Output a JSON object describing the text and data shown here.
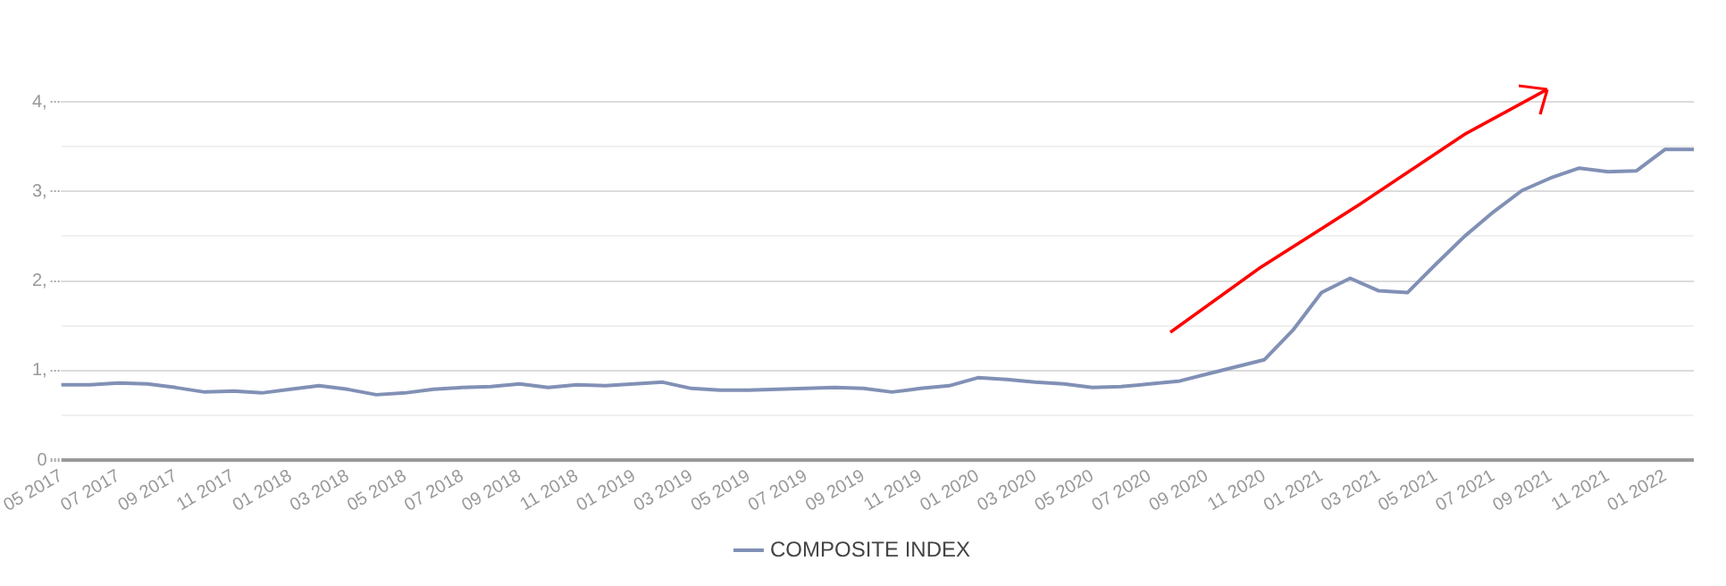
{
  "chart_data": {
    "type": "line",
    "categories": [
      "05 2017",
      null,
      "07 2017",
      null,
      "09 2017",
      null,
      "11 2017",
      null,
      "01 2018",
      null,
      "03 2018",
      null,
      "05 2018",
      null,
      "07 2018",
      null,
      "09 2018",
      null,
      "11 2018",
      null,
      "01 2019",
      null,
      "03 2019",
      null,
      "05 2019",
      null,
      "07 2019",
      null,
      "09 2019",
      null,
      "11 2019",
      null,
      "01 2020",
      null,
      "03 2020",
      null,
      "05 2020",
      null,
      "07 2020",
      null,
      "09 2020",
      null,
      "11 2020",
      null,
      "01 2021",
      null,
      "03 2021",
      null,
      "05 2021",
      null,
      "07 2021",
      null,
      "09 2021",
      null,
      "11 2021",
      null,
      "01 2022",
      null
    ],
    "series": [
      {
        "name": "COMPOSITE INDEX",
        "color": "#8190b5",
        "values": [
          0.84,
          0.84,
          0.86,
          0.85,
          0.81,
          0.76,
          0.77,
          0.75,
          0.79,
          0.83,
          0.79,
          0.73,
          0.75,
          0.79,
          0.81,
          0.82,
          0.85,
          0.81,
          0.84,
          0.83,
          0.85,
          0.87,
          0.8,
          0.78,
          0.78,
          0.79,
          0.8,
          0.81,
          0.8,
          0.76,
          0.8,
          0.83,
          0.92,
          0.9,
          0.87,
          0.85,
          0.81,
          0.82,
          0.85,
          0.88,
          0.96,
          1.04,
          1.12,
          1.45,
          1.87,
          2.03,
          1.89,
          1.87,
          2.19,
          2.5,
          2.77,
          3.01,
          3.15,
          3.26,
          3.22,
          3.23,
          3.47,
          3.47
        ]
      }
    ],
    "ylim": [
      0,
      4
    ],
    "yticks": [
      0,
      {
        "value": 0.5,
        "label": null
      },
      {
        "value": 1,
        "label": "1,"
      },
      {
        "value": 1.5,
        "label": null
      },
      {
        "value": 2,
        "label": "2,"
      },
      {
        "value": 2.5,
        "label": null
      },
      {
        "value": 3,
        "label": "3,"
      },
      {
        "value": 3.5,
        "label": null
      },
      {
        "value": 4,
        "label": "4,"
      }
    ],
    "grid": "y",
    "legend": "bottom",
    "marker": "none",
    "line_style": "solid"
  }
}
